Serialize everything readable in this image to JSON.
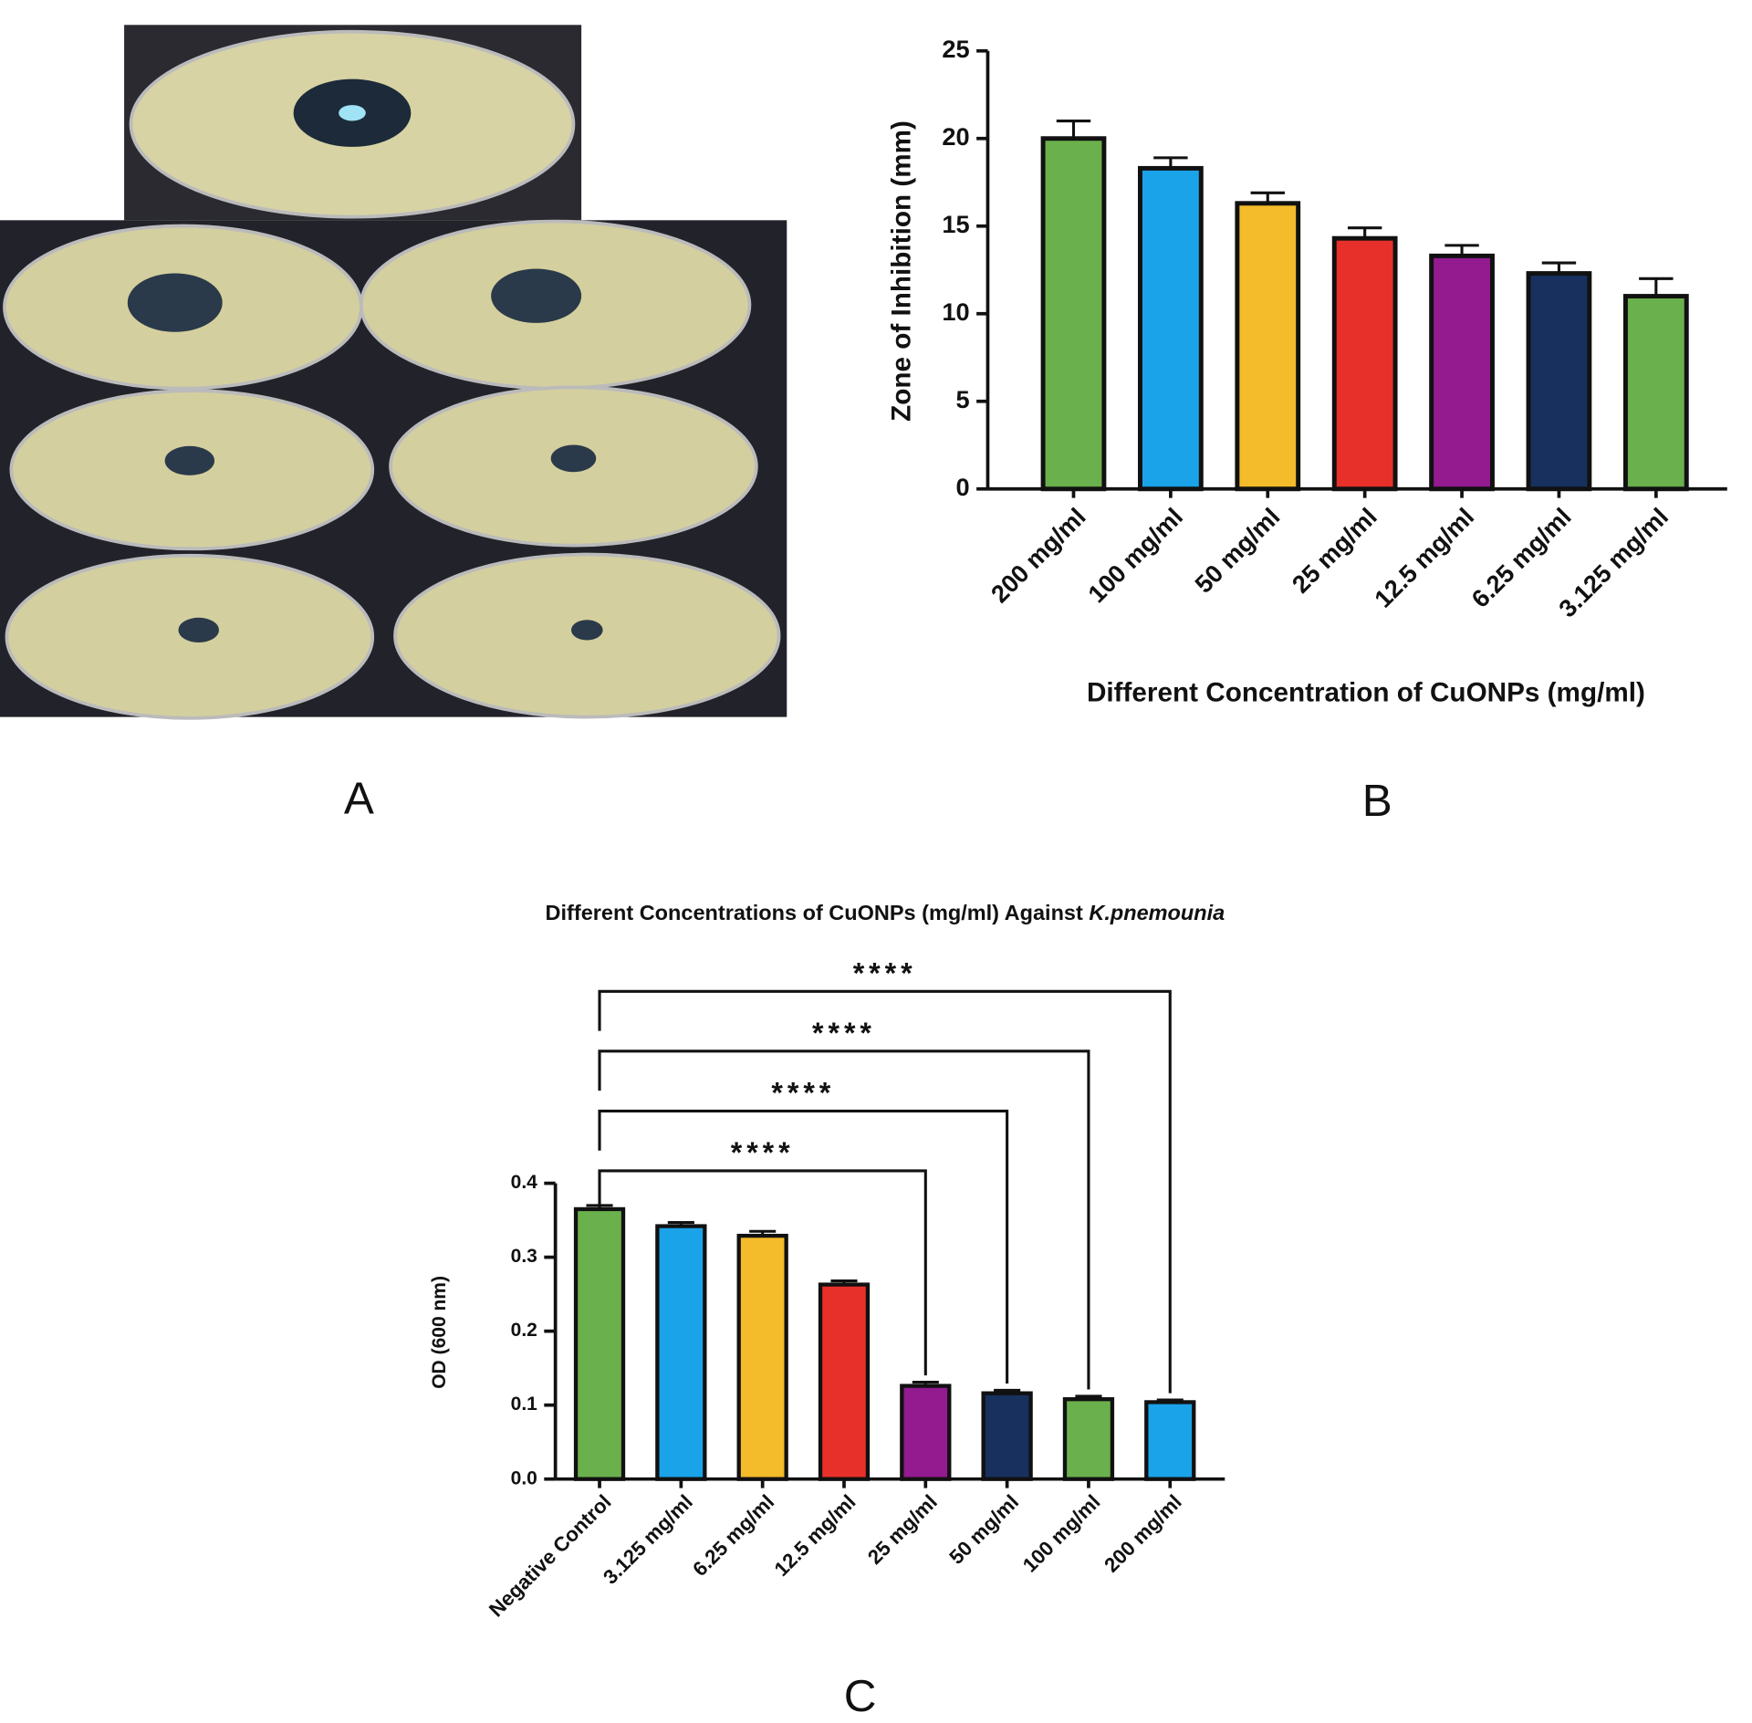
{
  "panels": [
    "A",
    "B",
    "C"
  ],
  "chart_data": [
    {
      "type": "bar",
      "xlabel": "Different Concentration of CuONPs (mg/ml)",
      "ylabel": "Zone of Inhibition (mm)",
      "categories": [
        "200 mg/ml",
        "100 mg/ml",
        "50 mg/ml",
        "25 mg/ml",
        "12.5 mg/ml",
        "6.25 mg/ml",
        "3.125 mg/ml"
      ],
      "values": [
        20,
        18.3,
        16.3,
        14.3,
        13.3,
        12.3,
        11
      ],
      "errors": [
        1.0,
        0.6,
        0.6,
        0.6,
        0.6,
        0.6,
        1.0
      ],
      "colors": [
        "#6ab04c",
        "#1aa3e8",
        "#f4bb2a",
        "#e8302a",
        "#931a8f",
        "#17305e",
        "#6ab04c"
      ],
      "ylim": [
        0,
        25
      ],
      "yticks": [
        0,
        5,
        10,
        15,
        20,
        25
      ]
    },
    {
      "type": "bar",
      "title": "Different Concentrations of CuONPs (mg/ml) Against",
      "title_italic": "K.pnemounia",
      "ylabel": "OD (600 nm)",
      "categories": [
        "Negative Control",
        "3.125 mg/ml",
        "6.25 mg/ml",
        "12.5 mg/ml",
        "25 mg/ml",
        "50 mg/ml",
        "100 mg/ml",
        "200 mg/ml"
      ],
      "values": [
        0.365,
        0.342,
        0.329,
        0.263,
        0.126,
        0.116,
        0.108,
        0.104
      ],
      "errors": [
        0.005,
        0.005,
        0.006,
        0.005,
        0.005,
        0.004,
        0.004,
        0.003
      ],
      "colors": [
        "#6ab04c",
        "#1aa3e8",
        "#f4bb2a",
        "#e8302a",
        "#931a8f",
        "#17305e",
        "#6ab04c",
        "#1aa3e8"
      ],
      "ylim": [
        0,
        0.4
      ],
      "yticks": [
        {
          "value": 0,
          "label": "0.0"
        },
        0.1,
        0.2,
        0.3,
        0.4
      ],
      "comparisons": [
        {
          "from": 0,
          "to": 4,
          "label": "****"
        },
        {
          "from": 0,
          "to": 5,
          "label": "****"
        },
        {
          "from": 0,
          "to": 6,
          "label": "****"
        },
        {
          "from": 0,
          "to": 7,
          "label": "****"
        }
      ]
    }
  ]
}
